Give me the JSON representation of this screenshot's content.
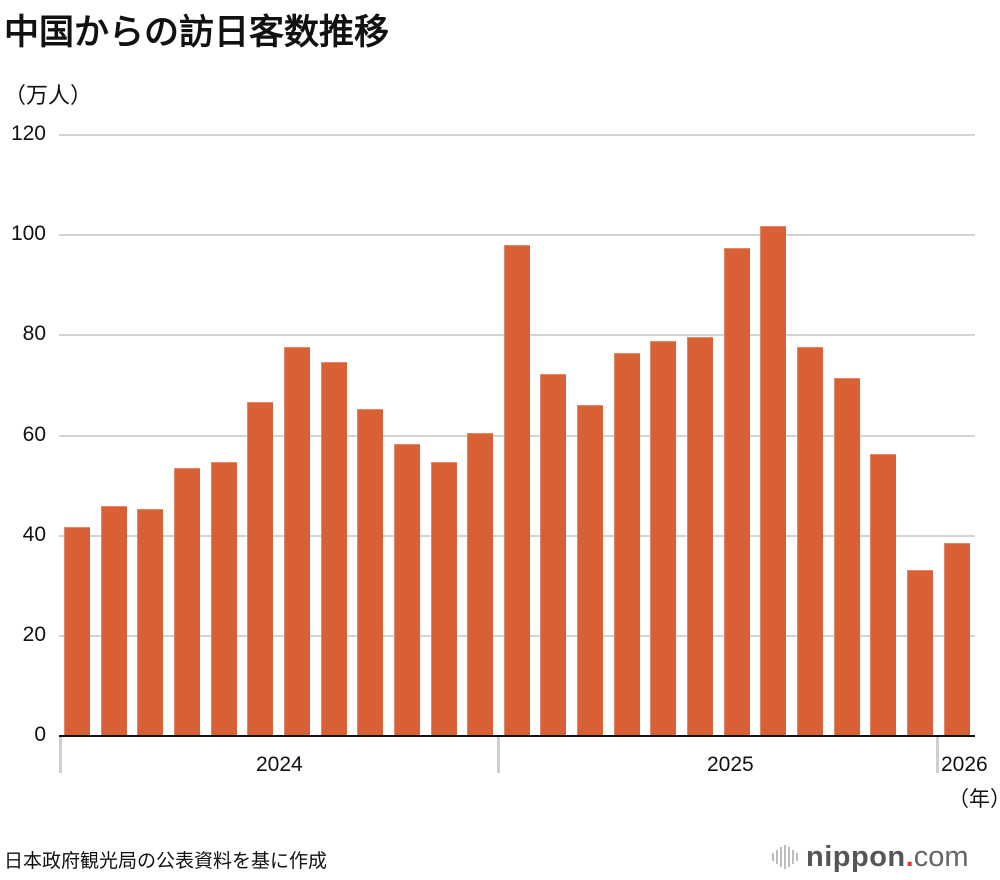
{
  "title": "中国からの訪日客数推移",
  "unit_label": "（万人）",
  "x_unit_label": "（年）",
  "source": "日本政府観光局の公表資料を基に作成",
  "logo": {
    "brand": "nippon",
    "dot": ".",
    "tld": "com",
    "icon": "sound-wave-icon"
  },
  "colors": {
    "bar": "#d96034",
    "grid": "#d3d3d3",
    "axis": "#111111",
    "logo_dot": "#e8362b"
  },
  "y_ticks": [
    "0",
    "20",
    "40",
    "60",
    "80",
    "100",
    "120"
  ],
  "x_groups": [
    "2024",
    "2025",
    "2026"
  ],
  "chart_data": {
    "type": "bar",
    "title": "中国からの訪日客数推移",
    "xlabel": "（年）",
    "ylabel": "（万人）",
    "ylim": [
      0,
      120
    ],
    "yticks": [
      0,
      20,
      40,
      60,
      80,
      100,
      120
    ],
    "grid": true,
    "legend": null,
    "categories": [
      "2024-01",
      "2024-02",
      "2024-03",
      "2024-04",
      "2024-05",
      "2024-06",
      "2024-07",
      "2024-08",
      "2024-09",
      "2024-10",
      "2024-11",
      "2024-12",
      "2025-01",
      "2025-02",
      "2025-03",
      "2025-04",
      "2025-05",
      "2025-06",
      "2025-07",
      "2025-08",
      "2025-09",
      "2025-10",
      "2025-11",
      "2025-12",
      "2026-01"
    ],
    "values": [
      41.7,
      45.9,
      45.3,
      53.5,
      54.7,
      66.7,
      77.6,
      74.7,
      65.3,
      58.3,
      54.7,
      60.5,
      98.0,
      72.3,
      66.1,
      76.5,
      78.9,
      79.7,
      97.5,
      101.9,
      77.6,
      71.5,
      56.3,
      33.1,
      38.5
    ],
    "group_labels": [
      {
        "label": "2024",
        "start": 0,
        "end": 11
      },
      {
        "label": "2025",
        "start": 12,
        "end": 23
      },
      {
        "label": "2026",
        "start": 24,
        "end": 24
      }
    ]
  }
}
